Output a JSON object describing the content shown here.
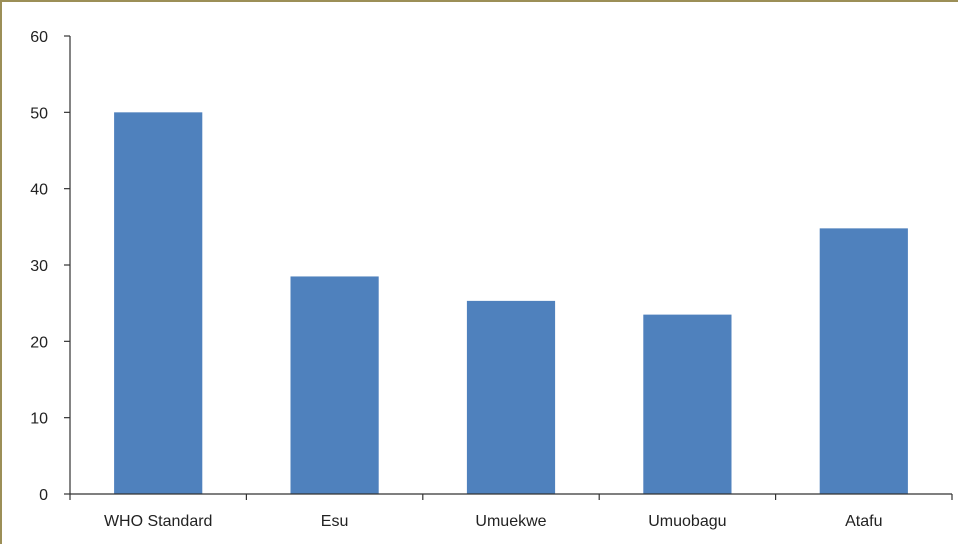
{
  "chart_data": {
    "type": "bar",
    "categories": [
      "WHO Standard",
      "Esu",
      "Umuekwe",
      "Umuobagu",
      "Atafu"
    ],
    "values": [
      50,
      28.5,
      25.3,
      23.5,
      34.8
    ],
    "ylim": [
      0,
      60
    ],
    "yticks": [
      0,
      10,
      20,
      30,
      40,
      50,
      60
    ],
    "title": "",
    "xlabel": "",
    "ylabel": "",
    "grid": false,
    "legend": "none",
    "colors": {
      "bar": "#4f81bd"
    }
  }
}
